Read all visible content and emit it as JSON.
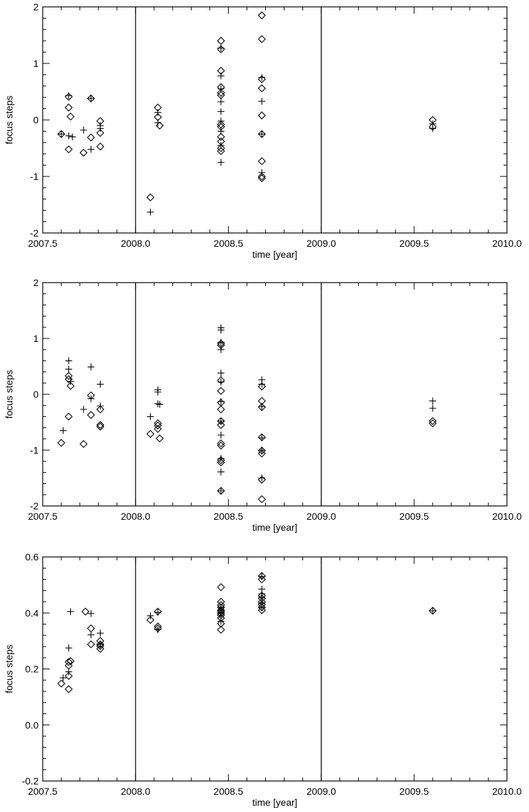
{
  "chart_data": [
    {
      "type": "scatter",
      "xlabel": "time [year]",
      "ylabel": "focus steps",
      "xlim": [
        2007.5,
        2010.0
      ],
      "ylim": [
        -2,
        2
      ],
      "xticks": [
        "2007.5",
        "2008.0",
        "2008.5",
        "2009.0",
        "2009.5",
        "2010.0"
      ],
      "yticks": [
        "-2",
        "-1",
        "0",
        "1",
        "2"
      ],
      "vlines": [
        2008.0,
        2009.0
      ],
      "series": [
        {
          "marker": "diamond",
          "points": [
            [
              2007.6,
              -0.25
            ],
            [
              2007.64,
              0.41
            ],
            [
              2007.64,
              0.22
            ],
            [
              2007.64,
              -0.52
            ],
            [
              2007.65,
              0.06
            ],
            [
              2007.72,
              -0.58
            ],
            [
              2007.76,
              0.38
            ],
            [
              2007.76,
              -0.31
            ],
            [
              2007.81,
              -0.02
            ],
            [
              2007.81,
              -0.23
            ],
            [
              2007.81,
              -0.47
            ],
            [
              2008.08,
              -1.37
            ],
            [
              2008.12,
              0.22
            ],
            [
              2008.12,
              0.05
            ],
            [
              2008.13,
              -0.1
            ],
            [
              2008.46,
              1.4
            ],
            [
              2008.46,
              1.25
            ],
            [
              2008.46,
              0.87
            ],
            [
              2008.46,
              0.58
            ],
            [
              2008.46,
              0.48
            ],
            [
              2008.46,
              0.44
            ],
            [
              2008.46,
              -0.08
            ],
            [
              2008.46,
              -0.12
            ],
            [
              2008.46,
              -0.3
            ],
            [
              2008.46,
              -0.38
            ],
            [
              2008.46,
              -0.5
            ],
            [
              2008.46,
              -0.55
            ],
            [
              2008.68,
              1.85
            ],
            [
              2008.68,
              1.43
            ],
            [
              2008.68,
              0.72
            ],
            [
              2008.68,
              0.56
            ],
            [
              2008.68,
              0.08
            ],
            [
              2008.68,
              -0.25
            ],
            [
              2008.68,
              -0.73
            ],
            [
              2008.68,
              -1.0
            ],
            [
              2008.68,
              -1.03
            ],
            [
              2009.6,
              0.0
            ],
            [
              2009.6,
              -0.12
            ]
          ]
        },
        {
          "marker": "plus",
          "points": [
            [
              2007.6,
              -0.25
            ],
            [
              2007.64,
              0.43
            ],
            [
              2007.64,
              -0.28
            ],
            [
              2007.66,
              -0.3
            ],
            [
              2007.72,
              -0.18
            ],
            [
              2007.76,
              0.38
            ],
            [
              2007.76,
              -0.52
            ],
            [
              2007.81,
              -0.1
            ],
            [
              2007.81,
              -0.15
            ],
            [
              2008.08,
              -1.63
            ],
            [
              2008.12,
              0.13
            ],
            [
              2008.12,
              -0.05
            ],
            [
              2008.46,
              1.27
            ],
            [
              2008.46,
              0.78
            ],
            [
              2008.46,
              0.55
            ],
            [
              2008.46,
              0.32
            ],
            [
              2008.46,
              0.15
            ],
            [
              2008.46,
              -0.02
            ],
            [
              2008.46,
              -0.2
            ],
            [
              2008.46,
              -0.45
            ],
            [
              2008.46,
              -0.75
            ],
            [
              2008.68,
              0.75
            ],
            [
              2008.68,
              0.33
            ],
            [
              2008.68,
              -0.25
            ],
            [
              2008.68,
              -0.93
            ],
            [
              2009.6,
              -0.07
            ],
            [
              2009.6,
              -0.15
            ]
          ]
        }
      ]
    },
    {
      "type": "scatter",
      "xlabel": "time [year]",
      "ylabel": "focus steps",
      "xlim": [
        2007.5,
        2010.0
      ],
      "ylim": [
        -2,
        2
      ],
      "xticks": [
        "2007.5",
        "2008.0",
        "2008.5",
        "2009.0",
        "2009.5",
        "2010.0"
      ],
      "yticks": [
        "-2",
        "-1",
        "0",
        "1",
        "2"
      ],
      "vlines": [
        2008.0,
        2009.0
      ],
      "series": [
        {
          "marker": "diamond",
          "points": [
            [
              2007.6,
              -0.87
            ],
            [
              2007.64,
              0.33
            ],
            [
              2007.64,
              0.27
            ],
            [
              2007.64,
              -0.4
            ],
            [
              2007.65,
              0.15
            ],
            [
              2007.72,
              -0.89
            ],
            [
              2007.76,
              -0.02
            ],
            [
              2007.76,
              -0.37
            ],
            [
              2007.81,
              -0.27
            ],
            [
              2007.81,
              -0.55
            ],
            [
              2007.81,
              -0.58
            ],
            [
              2008.08,
              -0.71
            ],
            [
              2008.12,
              -0.52
            ],
            [
              2008.12,
              -0.56
            ],
            [
              2008.12,
              -0.62
            ],
            [
              2008.13,
              -0.79
            ],
            [
              2008.46,
              0.91
            ],
            [
              2008.46,
              0.88
            ],
            [
              2008.46,
              0.25
            ],
            [
              2008.46,
              0.06
            ],
            [
              2008.46,
              -0.15
            ],
            [
              2008.46,
              -0.27
            ],
            [
              2008.46,
              -0.48
            ],
            [
              2008.46,
              -0.55
            ],
            [
              2008.46,
              -0.88
            ],
            [
              2008.46,
              -0.92
            ],
            [
              2008.46,
              -1.18
            ],
            [
              2008.46,
              -1.22
            ],
            [
              2008.46,
              -1.73
            ],
            [
              2008.68,
              0.14
            ],
            [
              2008.68,
              -0.12
            ],
            [
              2008.68,
              -0.23
            ],
            [
              2008.68,
              -0.77
            ],
            [
              2008.68,
              -1.01
            ],
            [
              2008.68,
              -1.06
            ],
            [
              2008.68,
              -1.53
            ],
            [
              2008.68,
              -1.88
            ],
            [
              2009.6,
              -0.48
            ],
            [
              2009.6,
              -0.52
            ]
          ]
        },
        {
          "marker": "plus",
          "points": [
            [
              2007.61,
              -0.65
            ],
            [
              2007.64,
              0.6
            ],
            [
              2007.64,
              0.45
            ],
            [
              2007.65,
              0.23
            ],
            [
              2007.72,
              -0.27
            ],
            [
              2007.76,
              0.49
            ],
            [
              2007.76,
              -0.08
            ],
            [
              2007.81,
              0.18
            ],
            [
              2007.81,
              -0.21
            ],
            [
              2008.08,
              -0.4
            ],
            [
              2008.12,
              0.08
            ],
            [
              2008.12,
              0.04
            ],
            [
              2008.12,
              -0.17
            ],
            [
              2008.13,
              -0.18
            ],
            [
              2008.46,
              1.19
            ],
            [
              2008.46,
              1.15
            ],
            [
              2008.46,
              0.93
            ],
            [
              2008.46,
              0.8
            ],
            [
              2008.46,
              0.38
            ],
            [
              2008.46,
              0.22
            ],
            [
              2008.46,
              -0.13
            ],
            [
              2008.46,
              -0.48
            ],
            [
              2008.46,
              -0.73
            ],
            [
              2008.46,
              -1.15
            ],
            [
              2008.46,
              -1.39
            ],
            [
              2008.46,
              -1.73
            ],
            [
              2008.68,
              0.26
            ],
            [
              2008.68,
              0.18
            ],
            [
              2008.68,
              -0.22
            ],
            [
              2008.68,
              -0.78
            ],
            [
              2008.68,
              -1.0
            ],
            [
              2008.68,
              -1.5
            ],
            [
              2009.6,
              -0.12
            ],
            [
              2009.6,
              -0.25
            ]
          ]
        }
      ]
    },
    {
      "type": "scatter",
      "xlabel": "time [year]",
      "ylabel": "focus steps",
      "xlim": [
        2007.5,
        2010.0
      ],
      "ylim": [
        -0.2,
        0.6
      ],
      "xticks": [
        "2007.5",
        "2008.0",
        "2008.5",
        "2009.0",
        "2009.5",
        "2010.0"
      ],
      "yticks": [
        "-0.2",
        "0.0",
        "0.2",
        "0.4",
        "0.6"
      ],
      "vlines": [
        2008.0,
        2009.0
      ],
      "series": [
        {
          "marker": "diamond",
          "points": [
            [
              2007.6,
              0.148
            ],
            [
              2007.64,
              0.225
            ],
            [
              2007.64,
              0.212
            ],
            [
              2007.64,
              0.175
            ],
            [
              2007.64,
              0.128
            ],
            [
              2007.65,
              0.228
            ],
            [
              2007.73,
              0.405
            ],
            [
              2007.76,
              0.345
            ],
            [
              2007.76,
              0.288
            ],
            [
              2007.81,
              0.3
            ],
            [
              2007.81,
              0.288
            ],
            [
              2007.81,
              0.282
            ],
            [
              2007.81,
              0.272
            ],
            [
              2008.08,
              0.375
            ],
            [
              2008.12,
              0.405
            ],
            [
              2008.12,
              0.352
            ],
            [
              2008.12,
              0.345
            ],
            [
              2008.46,
              0.492
            ],
            [
              2008.46,
              0.44
            ],
            [
              2008.46,
              0.428
            ],
            [
              2008.46,
              0.42
            ],
            [
              2008.46,
              0.41
            ],
            [
              2008.46,
              0.405
            ],
            [
              2008.46,
              0.398
            ],
            [
              2008.46,
              0.392
            ],
            [
              2008.46,
              0.382
            ],
            [
              2008.46,
              0.362
            ],
            [
              2008.46,
              0.34
            ],
            [
              2008.68,
              0.532
            ],
            [
              2008.68,
              0.52
            ],
            [
              2008.68,
              0.462
            ],
            [
              2008.68,
              0.452
            ],
            [
              2008.68,
              0.44
            ],
            [
              2008.68,
              0.43
            ],
            [
              2008.68,
              0.42
            ],
            [
              2008.68,
              0.41
            ],
            [
              2009.6,
              0.408
            ]
          ]
        },
        {
          "marker": "plus",
          "points": [
            [
              2007.61,
              0.168
            ],
            [
              2007.64,
              0.275
            ],
            [
              2007.64,
              0.19
            ],
            [
              2007.65,
              0.405
            ],
            [
              2007.76,
              0.398
            ],
            [
              2007.76,
              0.322
            ],
            [
              2007.81,
              0.328
            ],
            [
              2007.81,
              0.288
            ],
            [
              2008.08,
              0.39
            ],
            [
              2008.12,
              0.402
            ],
            [
              2008.12,
              0.34
            ],
            [
              2008.46,
              0.42
            ],
            [
              2008.46,
              0.41
            ],
            [
              2008.46,
              0.4
            ],
            [
              2008.46,
              0.37
            ],
            [
              2008.68,
              0.53
            ],
            [
              2008.68,
              0.485
            ],
            [
              2008.68,
              0.468
            ],
            [
              2008.68,
              0.455
            ],
            [
              2008.68,
              0.435
            ],
            [
              2008.68,
              0.42
            ],
            [
              2009.6,
              0.408
            ]
          ]
        }
      ]
    }
  ]
}
